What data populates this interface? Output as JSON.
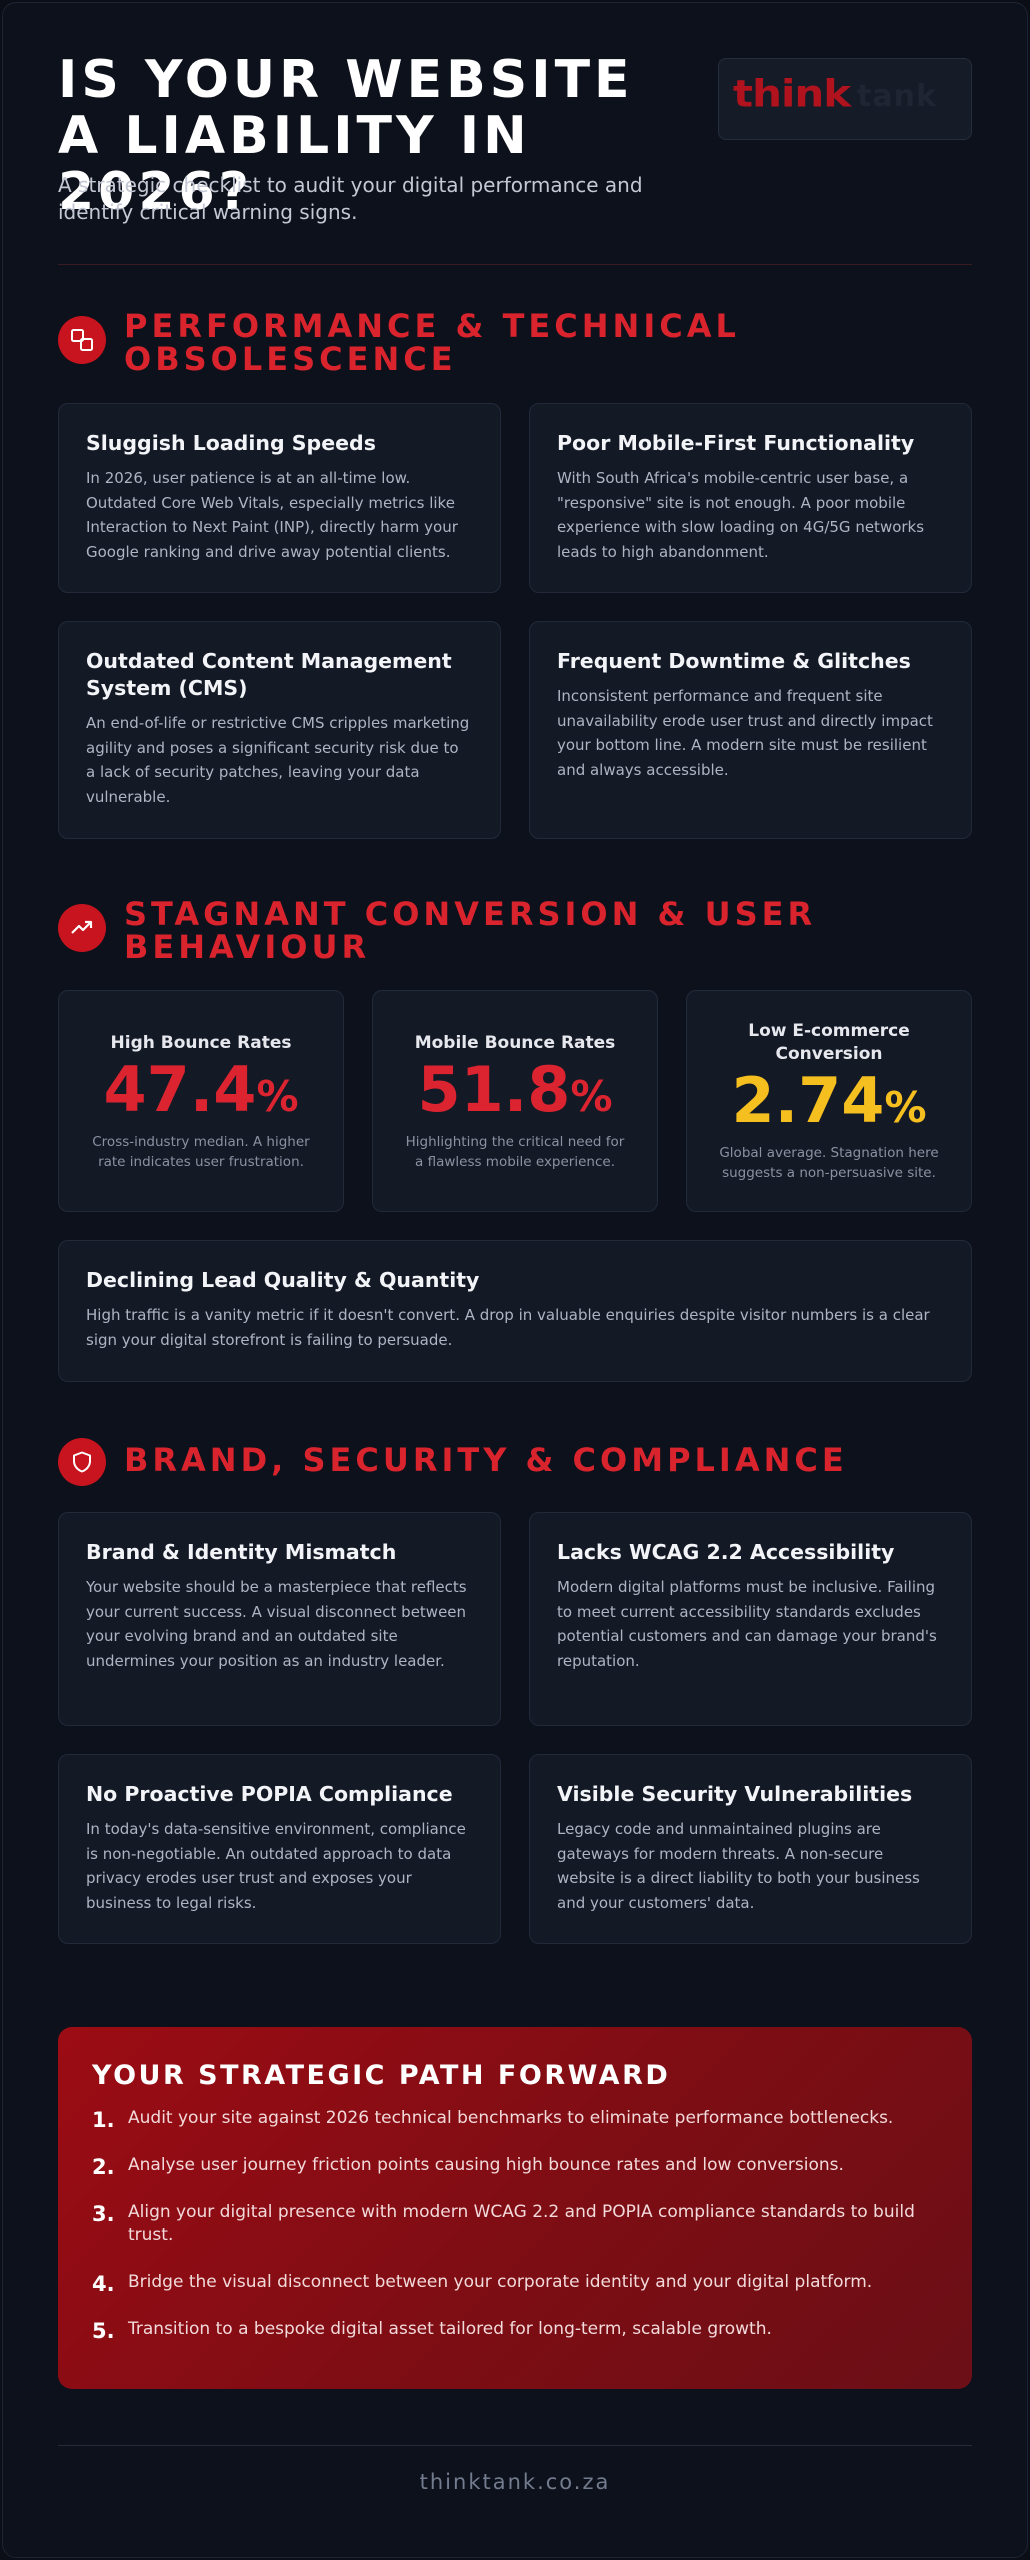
{
  "header": {
    "title": "IS YOUR WEBSITE A LIABILITY IN 2026?",
    "subtitle": "A strategic checklist to audit your digital performance and identify critical warning signs.",
    "logo_text": "think",
    "logo_text_faint": "tank"
  },
  "sections": [
    {
      "title": "PERFORMANCE & TECHNICAL OBSOLESCENCE",
      "icon": "layers-icon",
      "cards": [
        {
          "title": "Sluggish Loading Speeds",
          "body": "In 2026, user patience is at an all-time low. Outdated Core Web Vitals, especially metrics like Interaction to Next Paint (INP), directly harm your Google ranking and drive away potential clients."
        },
        {
          "title": "Poor Mobile-First Functionality",
          "body": "With South Africa's mobile-centric user base, a \"responsive\" site is not enough. A poor mobile experience with slow loading on 4G/5G networks leads to high abandonment."
        },
        {
          "title": "Outdated Content Management System (CMS)",
          "body": "An end-of-life or restrictive CMS cripples marketing agility and poses a significant security risk due to a lack of security patches, leaving your data vulnerable."
        },
        {
          "title": "Frequent Downtime & Glitches",
          "body": "Inconsistent performance and frequent site unavailability erode user trust and directly impact your bottom line. A modern site must be resilient and always accessible."
        }
      ]
    },
    {
      "title": "STAGNANT CONVERSION & USER BEHAVIOUR",
      "icon": "trending-up-icon",
      "stats": [
        {
          "label": "High Bounce Rates",
          "value": "47.4",
          "unit": "%",
          "note": "Cross-industry median. A higher rate indicates user frustration."
        },
        {
          "label": "Mobile Bounce Rates",
          "value": "51.8",
          "unit": "%",
          "note": "Highlighting the critical need for a flawless mobile experience."
        },
        {
          "label": "Low E-commerce Conversion",
          "value": "2.74",
          "unit": "%",
          "note": "Global average. Stagnation here suggests a non-persuasive site."
        }
      ],
      "wide_card": {
        "title": "Declining Lead Quality & Quantity",
        "body": "High traffic is a vanity metric if it doesn't convert. A drop in valuable enquiries despite visitor numbers is a clear sign your digital storefront is failing to persuade."
      }
    },
    {
      "title": "BRAND, SECURITY & COMPLIANCE",
      "icon": "shield-icon",
      "cards": [
        {
          "title": "Brand & Identity Mismatch",
          "body": "Your website should be a masterpiece that reflects your current success. A visual disconnect between your evolving brand and an outdated site undermines your position as an industry leader."
        },
        {
          "title": "Lacks WCAG 2.2 Accessibility",
          "body": "Modern digital platforms must be inclusive. Failing to meet current accessibility standards excludes potential customers and can damage your brand's reputation."
        },
        {
          "title": "No Proactive POPIA Compliance",
          "body": "In today's data-sensitive environment, compliance is non-negotiable. An outdated approach to data privacy erodes user trust and exposes your business to legal risks."
        },
        {
          "title": "Visible Security Vulnerabilities",
          "body": "Legacy code and unmaintained plugins are gateways for modern threats. A non-secure website is a direct liability to both your business and your customers' data."
        }
      ]
    }
  ],
  "path_forward": {
    "title": "YOUR STRATEGIC PATH FORWARD",
    "steps": [
      {
        "num": "1.",
        "text": "Audit your site against 2026 technical benchmarks to eliminate performance bottlenecks."
      },
      {
        "num": "2.",
        "text": "Analyse user journey friction points causing high bounce rates and low conversions."
      },
      {
        "num": "3.",
        "text": "Align your digital presence with modern WCAG 2.2 and POPIA compliance standards to build trust."
      },
      {
        "num": "4.",
        "text": "Bridge the visual disconnect between your corporate identity and your digital platform."
      },
      {
        "num": "5.",
        "text": "Transition to a bespoke digital asset tailored for long-term, scalable growth."
      }
    ]
  },
  "footer": {
    "site": "thinktank.co.za"
  },
  "colors": {
    "accent": "#d9242e",
    "amber": "#f5bf1f",
    "background": "#0d111b",
    "card": "#141926"
  }
}
